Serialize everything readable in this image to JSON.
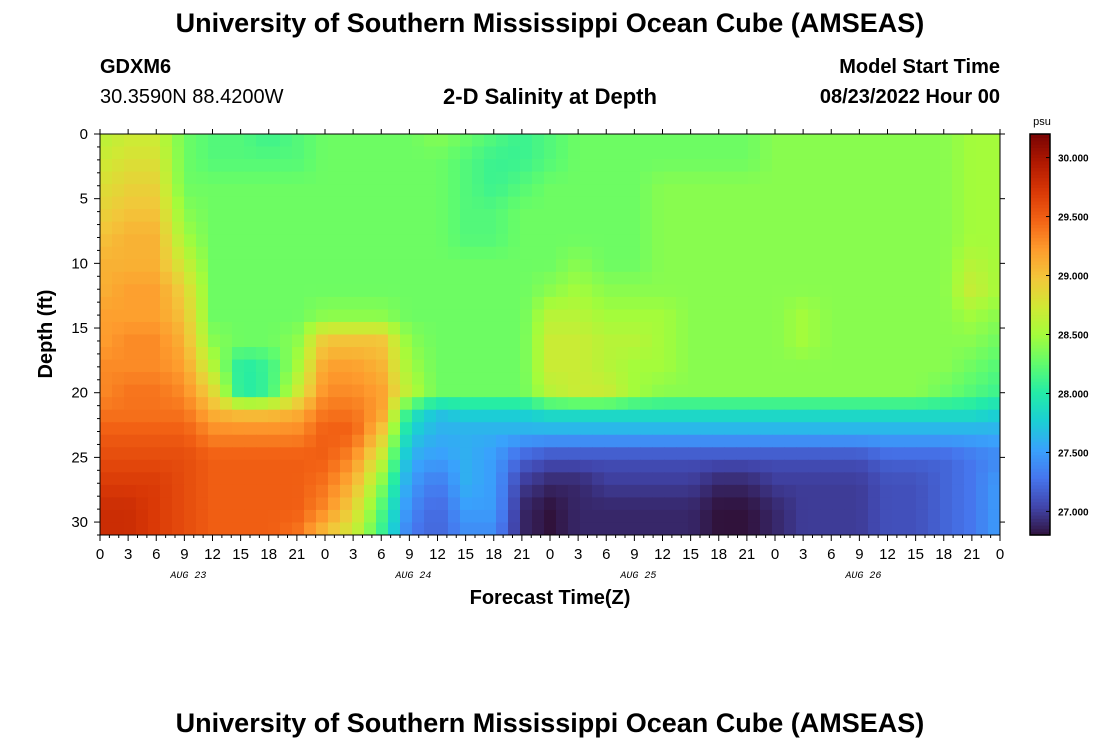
{
  "header": {
    "title": "University of Southern Mississippi Ocean Cube (AMSEAS)",
    "station_id": "GDXM6",
    "coords": "30.3590N  88.4200W",
    "subtitle": "2-D Salinity at Depth",
    "model_start_label": "Model Start Time",
    "model_start_value": "08/23/2022 Hour 00"
  },
  "footer": {
    "title": "University of Southern Mississippi Ocean Cube (AMSEAS)"
  },
  "chart_data": {
    "type": "heatmap",
    "xlabel": "Forecast Time(Z)",
    "ylabel": "Depth (ft)",
    "x_ticks": [
      "0",
      "3",
      "6",
      "9",
      "12",
      "15",
      "18",
      "21",
      "0",
      "3",
      "6",
      "9",
      "12",
      "15",
      "18",
      "21",
      "0",
      "3",
      "6",
      "9",
      "12",
      "15",
      "18",
      "21",
      "0",
      "3",
      "6",
      "9",
      "12",
      "15",
      "18",
      "21",
      "0"
    ],
    "x_range_hours": [
      0,
      96
    ],
    "date_labels": [
      {
        "text": "AUG 23",
        "hour": 9
      },
      {
        "text": "AUG 24",
        "hour": 33
      },
      {
        "text": "AUG 25",
        "hour": 57
      },
      {
        "text": "AUG 26",
        "hour": 81
      }
    ],
    "y_ticks": [
      0,
      5,
      10,
      15,
      20,
      25,
      30
    ],
    "y_range": [
      0,
      31
    ],
    "y_inverted": true,
    "colorbar": {
      "unit": "psu",
      "min": 26.8,
      "max": 30.2,
      "tick_labels": [
        "30.000",
        "29.500",
        "29.000",
        "28.500",
        "28.000",
        "27.500",
        "27.000"
      ],
      "tick_values": [
        30.0,
        29.5,
        29.0,
        28.5,
        28.0,
        27.5,
        27.0
      ],
      "colormap": [
        "#30123b",
        "#4145ab",
        "#4675ed",
        "#39a2fc",
        "#1bcfd4",
        "#24eca6",
        "#61fc6c",
        "#a4fc3b",
        "#d1e834",
        "#f3c63a",
        "#fe9b2d",
        "#f36315",
        "#d93806",
        "#b11901",
        "#7a0403"
      ]
    },
    "salinity_grid": {
      "hours": [
        0,
        3,
        6,
        9,
        12,
        15,
        18,
        21,
        24,
        27,
        30,
        33,
        36,
        39,
        42,
        45,
        48,
        51,
        54,
        57,
        60,
        63,
        66,
        69,
        72,
        75,
        78,
        81,
        84,
        87,
        90,
        93,
        96
      ],
      "depths_ft": [
        0,
        2,
        4,
        6,
        8,
        10,
        12,
        14,
        16,
        18,
        20,
        21.5,
        23,
        25,
        27,
        29,
        31
      ],
      "values": [
        [
          28.6,
          28.7,
          28.7,
          28.3,
          28.2,
          28.2,
          28.1,
          28.2,
          28.3,
          28.3,
          28.3,
          28.3,
          28.4,
          28.3,
          28.2,
          28.1,
          28.2,
          28.3,
          28.3,
          28.3,
          28.3,
          28.3,
          28.3,
          28.3,
          28.4,
          28.4,
          28.4,
          28.4,
          28.4,
          28.4,
          28.4,
          28.5,
          28.5
        ],
        [
          28.7,
          28.8,
          28.8,
          28.3,
          28.2,
          28.2,
          28.2,
          28.2,
          28.3,
          28.3,
          28.3,
          28.3,
          28.3,
          28.2,
          28.1,
          28.1,
          28.2,
          28.3,
          28.3,
          28.3,
          28.3,
          28.3,
          28.3,
          28.3,
          28.4,
          28.4,
          28.4,
          28.4,
          28.4,
          28.4,
          28.4,
          28.5,
          28.5
        ],
        [
          28.8,
          28.9,
          28.9,
          28.3,
          28.3,
          28.3,
          28.3,
          28.3,
          28.3,
          28.3,
          28.3,
          28.3,
          28.3,
          28.2,
          28.1,
          28.2,
          28.3,
          28.3,
          28.3,
          28.3,
          28.4,
          28.4,
          28.4,
          28.4,
          28.4,
          28.4,
          28.4,
          28.4,
          28.4,
          28.4,
          28.4,
          28.5,
          28.5
        ],
        [
          28.9,
          29.0,
          29.0,
          28.4,
          28.3,
          28.3,
          28.3,
          28.3,
          28.3,
          28.3,
          28.3,
          28.3,
          28.3,
          28.2,
          28.2,
          28.3,
          28.3,
          28.3,
          28.3,
          28.3,
          28.4,
          28.4,
          28.4,
          28.4,
          28.4,
          28.4,
          28.4,
          28.4,
          28.4,
          28.4,
          28.4,
          28.5,
          28.5
        ],
        [
          29.0,
          29.1,
          29.1,
          28.5,
          28.3,
          28.3,
          28.3,
          28.3,
          28.3,
          28.3,
          28.3,
          28.3,
          28.3,
          28.2,
          28.2,
          28.3,
          28.3,
          28.3,
          28.3,
          28.3,
          28.4,
          28.4,
          28.4,
          28.4,
          28.4,
          28.4,
          28.4,
          28.4,
          28.4,
          28.4,
          28.4,
          28.5,
          28.5
        ],
        [
          29.1,
          29.1,
          29.1,
          28.7,
          28.3,
          28.3,
          28.3,
          28.3,
          28.3,
          28.3,
          28.3,
          28.3,
          28.3,
          28.3,
          28.3,
          28.3,
          28.3,
          28.4,
          28.3,
          28.3,
          28.4,
          28.4,
          28.4,
          28.4,
          28.4,
          28.4,
          28.4,
          28.4,
          28.4,
          28.4,
          28.4,
          28.6,
          28.5
        ],
        [
          29.1,
          29.2,
          29.2,
          28.9,
          28.3,
          28.3,
          28.3,
          28.3,
          28.3,
          28.3,
          28.3,
          28.3,
          28.3,
          28.3,
          28.3,
          28.3,
          28.4,
          28.5,
          28.4,
          28.4,
          28.4,
          28.4,
          28.4,
          28.4,
          28.4,
          28.4,
          28.4,
          28.4,
          28.4,
          28.4,
          28.4,
          28.7,
          28.5
        ],
        [
          29.2,
          29.2,
          29.2,
          29.0,
          28.3,
          28.3,
          28.3,
          28.3,
          28.4,
          28.4,
          28.4,
          28.3,
          28.3,
          28.3,
          28.3,
          28.3,
          28.6,
          28.6,
          28.5,
          28.5,
          28.5,
          28.4,
          28.4,
          28.4,
          28.4,
          28.5,
          28.4,
          28.4,
          28.4,
          28.4,
          28.4,
          28.5,
          28.4
        ],
        [
          29.2,
          29.3,
          29.3,
          29.1,
          28.4,
          28.3,
          28.3,
          28.4,
          29.0,
          29.0,
          29.0,
          28.4,
          28.3,
          28.3,
          28.3,
          28.3,
          28.7,
          28.7,
          28.6,
          28.6,
          28.5,
          28.4,
          28.4,
          28.4,
          28.4,
          28.5,
          28.4,
          28.4,
          28.4,
          28.4,
          28.4,
          28.4,
          28.3
        ],
        [
          29.3,
          29.3,
          29.3,
          29.2,
          28.6,
          28.0,
          28.1,
          28.5,
          29.2,
          29.2,
          29.1,
          28.5,
          28.3,
          28.3,
          28.3,
          28.3,
          28.7,
          28.7,
          28.6,
          28.5,
          28.5,
          28.4,
          28.4,
          28.4,
          28.4,
          28.4,
          28.4,
          28.4,
          28.4,
          28.4,
          28.4,
          28.3,
          28.2
        ],
        [
          29.3,
          29.4,
          29.4,
          29.3,
          28.9,
          28.0,
          28.1,
          28.7,
          29.3,
          29.3,
          29.2,
          28.6,
          28.3,
          28.3,
          28.3,
          28.3,
          28.6,
          28.7,
          28.7,
          28.5,
          28.4,
          28.4,
          28.4,
          28.4,
          28.4,
          28.4,
          28.4,
          28.4,
          28.4,
          28.4,
          28.3,
          28.2,
          28.1
        ],
        [
          29.4,
          29.4,
          29.4,
          29.4,
          29.1,
          29.0,
          29.0,
          29.1,
          29.4,
          29.4,
          29.2,
          28.0,
          27.7,
          27.8,
          27.8,
          27.8,
          27.9,
          27.9,
          27.9,
          27.9,
          27.9,
          27.9,
          27.9,
          27.9,
          27.9,
          27.9,
          27.9,
          27.9,
          27.9,
          27.9,
          27.9,
          27.9,
          27.8
        ],
        [
          29.5,
          29.5,
          29.5,
          29.5,
          29.3,
          29.3,
          29.3,
          29.3,
          29.5,
          29.5,
          29.0,
          27.8,
          27.6,
          27.6,
          27.6,
          27.6,
          27.6,
          27.6,
          27.6,
          27.6,
          27.6,
          27.6,
          27.6,
          27.6,
          27.6,
          27.6,
          27.6,
          27.6,
          27.6,
          27.6,
          27.6,
          27.6,
          27.6
        ],
        [
          29.6,
          29.6,
          29.6,
          29.6,
          29.5,
          29.5,
          29.5,
          29.5,
          29.5,
          29.3,
          28.7,
          27.6,
          27.5,
          27.6,
          27.5,
          27.2,
          27.1,
          27.1,
          27.1,
          27.1,
          27.1,
          27.1,
          27.1,
          27.1,
          27.1,
          27.1,
          27.1,
          27.1,
          27.2,
          27.2,
          27.2,
          27.3,
          27.4
        ],
        [
          29.7,
          29.7,
          29.7,
          29.6,
          29.5,
          29.5,
          29.5,
          29.5,
          29.4,
          29.1,
          28.4,
          27.5,
          27.3,
          27.6,
          27.5,
          27.0,
          26.9,
          26.9,
          27.0,
          27.0,
          27.0,
          27.0,
          26.9,
          26.9,
          27.0,
          27.0,
          27.0,
          27.0,
          27.1,
          27.1,
          27.2,
          27.3,
          27.5
        ],
        [
          29.8,
          29.8,
          29.7,
          29.6,
          29.5,
          29.5,
          29.5,
          29.5,
          29.3,
          28.9,
          28.2,
          27.4,
          27.2,
          27.5,
          27.5,
          26.9,
          26.8,
          26.9,
          26.9,
          26.9,
          26.9,
          26.9,
          26.8,
          26.8,
          26.9,
          27.0,
          27.0,
          27.0,
          27.1,
          27.1,
          27.2,
          27.3,
          27.5
        ],
        [
          29.8,
          29.8,
          29.7,
          29.6,
          29.5,
          29.5,
          29.5,
          29.4,
          29.0,
          28.7,
          28.1,
          27.3,
          27.2,
          27.4,
          27.4,
          26.9,
          26.8,
          26.9,
          26.9,
          26.9,
          26.9,
          26.9,
          26.8,
          26.8,
          26.9,
          27.0,
          27.0,
          27.0,
          27.1,
          27.1,
          27.2,
          27.3,
          27.5
        ]
      ]
    }
  }
}
